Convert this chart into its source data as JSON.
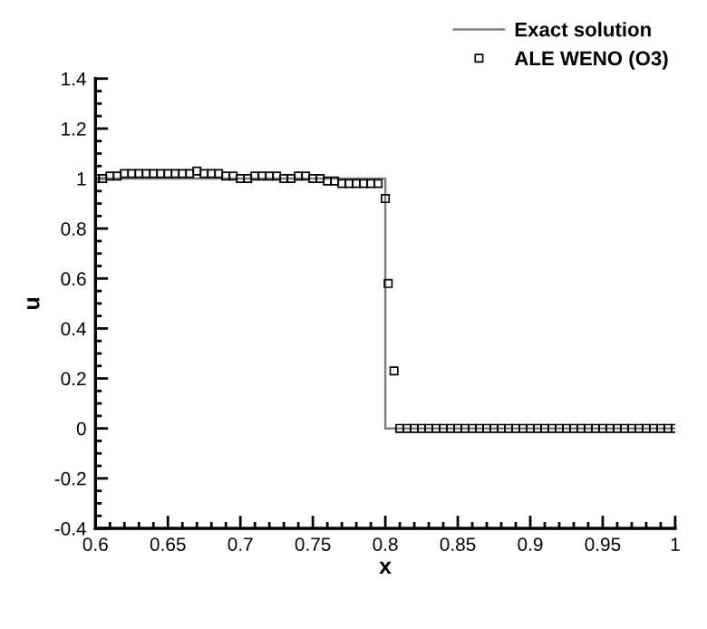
{
  "chart_data": {
    "type": "line",
    "xlabel": "x",
    "ylabel": "u",
    "xlim": [
      0.6,
      1
    ],
    "xticks": [
      0.6,
      0.65,
      0.7,
      0.75,
      0.8,
      0.85,
      0.9,
      0.95,
      1
    ],
    "ylim": [
      -0.4,
      1.4
    ],
    "yticks": [
      -0.4,
      -0.2,
      0,
      0.2,
      0.4,
      0.6,
      0.8,
      1,
      1.2,
      1.4
    ],
    "grid": false,
    "legend": "top right",
    "series": [
      {
        "name": "Exact solution",
        "color": "#808080",
        "marker": "none",
        "line_style": "solid",
        "x": [
          0.6,
          0.8,
          0.8,
          1
        ],
        "values": [
          1,
          1,
          0,
          0
        ]
      },
      {
        "name": "ALE WENO (O3)",
        "type": "scatter",
        "color": "#000000",
        "marker": "square",
        "x": [
          0.6,
          0.605,
          0.61,
          0.615,
          0.62,
          0.625,
          0.63,
          0.635,
          0.64,
          0.645,
          0.65,
          0.655,
          0.66,
          0.665,
          0.67,
          0.675,
          0.68,
          0.685,
          0.69,
          0.695,
          0.7,
          0.705,
          0.71,
          0.715,
          0.72,
          0.725,
          0.73,
          0.735,
          0.74,
          0.745,
          0.75,
          0.755,
          0.76,
          0.765,
          0.77,
          0.775,
          0.78,
          0.785,
          0.79,
          0.795,
          0.8,
          0.802,
          0.806,
          0.81,
          0.815,
          0.82,
          0.825,
          0.83,
          0.835,
          0.84,
          0.845,
          0.85,
          0.855,
          0.86,
          0.865,
          0.87,
          0.875,
          0.88,
          0.885,
          0.89,
          0.895,
          0.9,
          0.905,
          0.91,
          0.915,
          0.92,
          0.925,
          0.93,
          0.935,
          0.94,
          0.945,
          0.95,
          0.955,
          0.96,
          0.965,
          0.97,
          0.975,
          0.98,
          0.985,
          0.99,
          0.995,
          1
        ],
        "values": [
          1.0,
          1.0,
          1.01,
          1.01,
          1.02,
          1.02,
          1.02,
          1.02,
          1.02,
          1.02,
          1.02,
          1.02,
          1.02,
          1.02,
          1.03,
          1.02,
          1.02,
          1.02,
          1.01,
          1.01,
          1.0,
          1.0,
          1.01,
          1.01,
          1.01,
          1.01,
          1.0,
          1.0,
          1.01,
          1.01,
          1.0,
          1.0,
          0.99,
          0.99,
          0.98,
          0.98,
          0.98,
          0.98,
          0.98,
          0.98,
          0.92,
          0.58,
          0.23,
          0,
          0,
          0,
          0,
          0,
          0,
          0,
          0,
          0,
          0,
          0,
          0,
          0,
          0,
          0,
          0,
          0,
          0,
          0,
          0,
          0,
          0,
          0,
          0,
          0,
          0,
          0,
          0,
          0,
          0,
          0,
          0,
          0,
          0,
          0,
          0,
          0,
          0,
          0
        ]
      }
    ]
  }
}
